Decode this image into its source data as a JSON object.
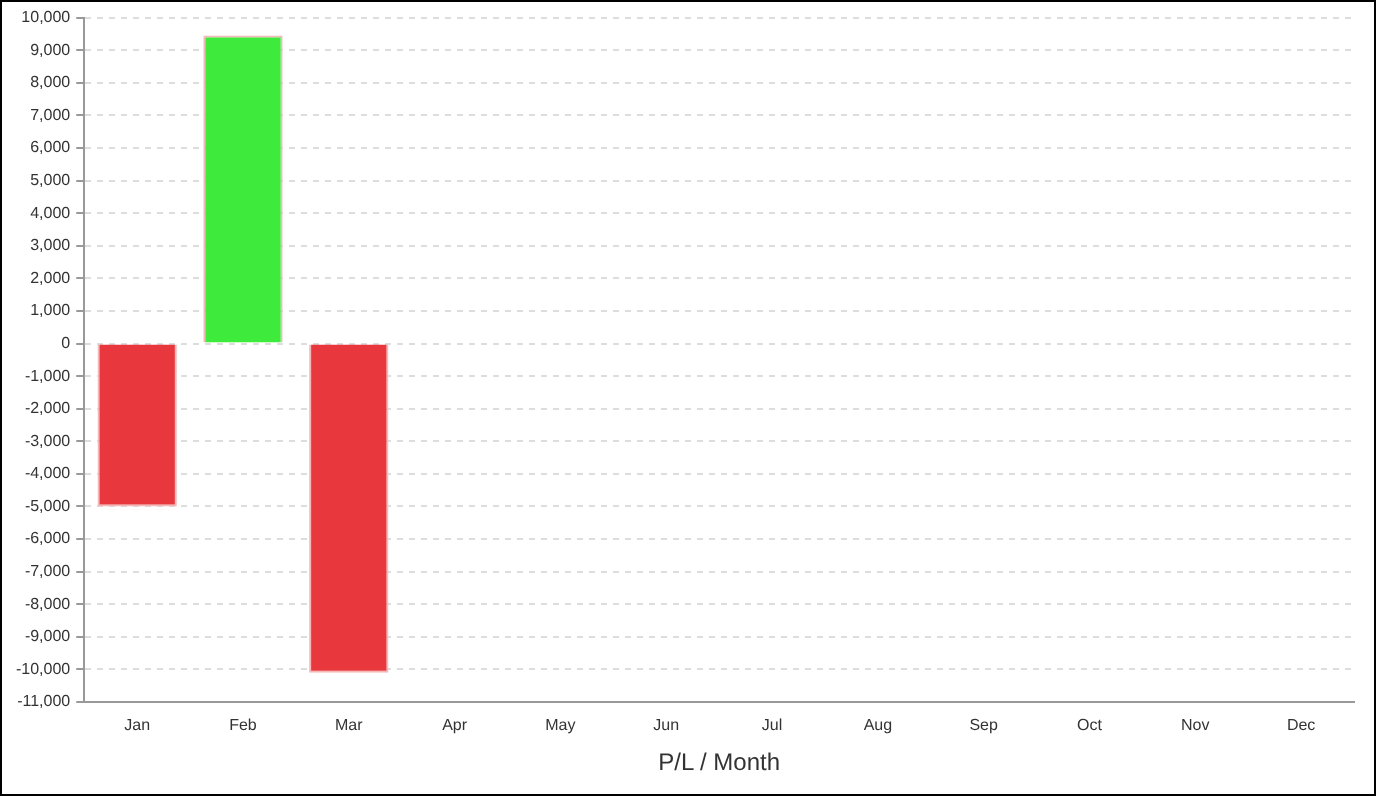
{
  "chart_data": {
    "type": "bar",
    "xlabel": "P/L / Month",
    "categories": [
      "Jan",
      "Feb",
      "Mar",
      "Apr",
      "May",
      "Jun",
      "Jul",
      "Aug",
      "Sep",
      "Oct",
      "Nov",
      "Dec"
    ],
    "values": [
      -5000,
      9450,
      -10100,
      null,
      null,
      null,
      null,
      null,
      null,
      null,
      null,
      null
    ],
    "colors": [
      "#e8383d",
      "#3eea3b",
      "#e8383d",
      "#e8383d",
      "#e8383d",
      "#e8383d",
      "#e8383d",
      "#e8383d",
      "#e8383d",
      "#e8383d",
      "#e8383d",
      "#e8383d"
    ],
    "ylim": [
      -11000,
      10000
    ],
    "yticks": [
      {
        "value": -11000,
        "label": "-11,000"
      },
      {
        "value": -10000,
        "label": "-10,000"
      },
      {
        "value": -9000,
        "label": "-9,000"
      },
      {
        "value": -8000,
        "label": "-8,000"
      },
      {
        "value": -7000,
        "label": "-7,000"
      },
      {
        "value": -6000,
        "label": "-6,000"
      },
      {
        "value": -5000,
        "label": "-5,000"
      },
      {
        "value": -4000,
        "label": "-4,000"
      },
      {
        "value": -3000,
        "label": "-3,000"
      },
      {
        "value": -2000,
        "label": "-2,000"
      },
      {
        "value": -1000,
        "label": "-1,000"
      },
      0,
      {
        "value": 1000,
        "label": "1,000"
      },
      {
        "value": 2000,
        "label": "2,000"
      },
      {
        "value": 3000,
        "label": "3,000"
      },
      {
        "value": 4000,
        "label": "4,000"
      },
      {
        "value": 5000,
        "label": "5,000"
      },
      {
        "value": 6000,
        "label": "6,000"
      },
      {
        "value": 7000,
        "label": "7,000"
      },
      {
        "value": 8000,
        "label": "8,000"
      },
      {
        "value": 9000,
        "label": "9,000"
      },
      {
        "value": 10000,
        "label": "10,000"
      }
    ],
    "grid": "y"
  }
}
